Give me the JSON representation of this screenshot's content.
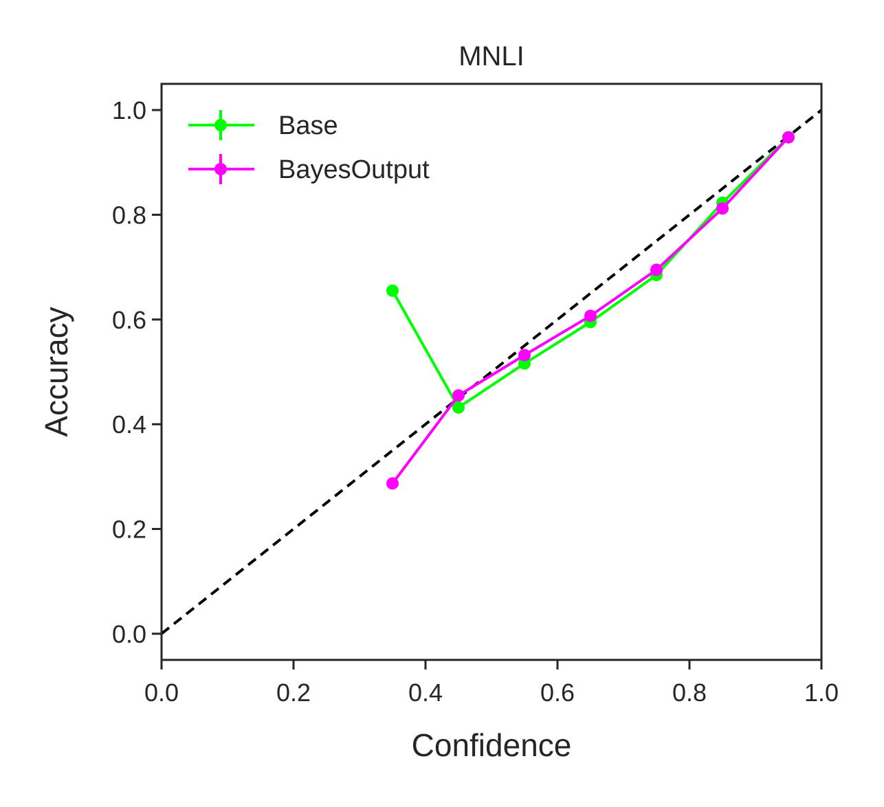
{
  "chart_data": {
    "type": "line",
    "title": "MNLI",
    "xlabel": "Confidence",
    "ylabel": "Accuracy",
    "xlim": [
      0.0,
      1.0
    ],
    "ylim": [
      -0.05,
      1.05
    ],
    "xticks": [
      "0.0",
      "0.2",
      "0.4",
      "0.6",
      "0.8",
      "1.0"
    ],
    "yticks": [
      "0.0",
      "0.2",
      "0.4",
      "0.6",
      "0.8",
      "1.0"
    ],
    "grid": false,
    "legend_position": "top-left",
    "reference_line": {
      "style": "dashed",
      "color": "#000000",
      "x": [
        0.0,
        1.0
      ],
      "y": [
        0.0,
        1.0
      ]
    },
    "series": [
      {
        "name": "Base",
        "color": "#00ff00",
        "x": [
          0.35,
          0.45,
          0.55,
          0.65,
          0.75,
          0.85,
          0.95
        ],
        "y": [
          0.655,
          0.432,
          0.516,
          0.595,
          0.685,
          0.823,
          0.948
        ]
      },
      {
        "name": "BayesOutput",
        "color": "#ff00ff",
        "x": [
          0.35,
          0.45,
          0.55,
          0.65,
          0.75,
          0.85,
          0.95
        ],
        "y": [
          0.287,
          0.455,
          0.532,
          0.607,
          0.695,
          0.812,
          0.948
        ]
      }
    ]
  }
}
